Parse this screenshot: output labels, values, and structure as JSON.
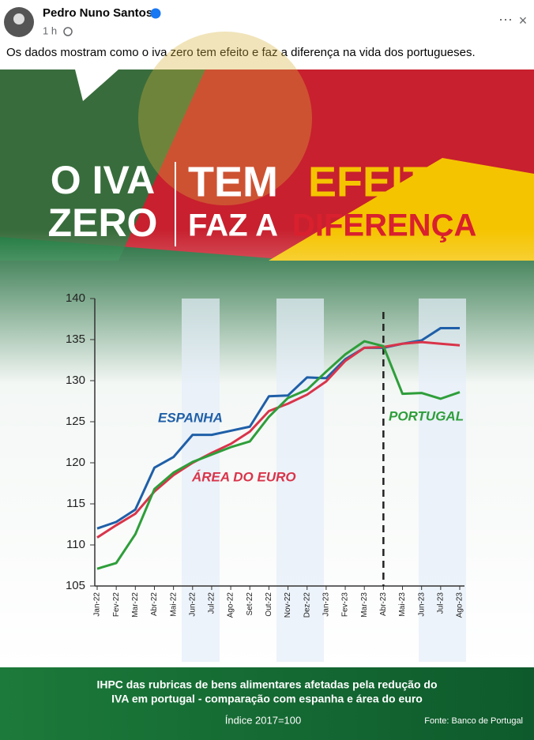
{
  "post": {
    "author": "Pedro Nuno Santos",
    "time": "1 h",
    "text": "Os dados mostram como o iva zero tem efeito e faz a diferença na vida dos portugueses."
  },
  "banner": {
    "o_iva": "O IVA",
    "zero": "ZERO",
    "tem": "TEM",
    "efeito": "EFEITO",
    "faz_a": "FAZ A",
    "diferenca": "DIFERENÇA"
  },
  "chart_data": {
    "type": "line",
    "categories": [
      "Jan-22",
      "Fev-22",
      "Mar-22",
      "Abr-22",
      "Mai-22",
      "Jun-22",
      "Jul-22",
      "Ago-22",
      "Set-22",
      "Out-22",
      "Nov-22",
      "Dez-22",
      "Jan-23",
      "Fev-23",
      "Mar-23",
      "Abr-23",
      "Mai-23",
      "Jun-23",
      "Jul-23",
      "Ago-23"
    ],
    "series": [
      {
        "name": "ESPANHA",
        "color": "#1f5fa8",
        "values": [
          112.0,
          112.8,
          114.3,
          119.4,
          120.7,
          123.4,
          123.4,
          123.9,
          124.4,
          128.1,
          128.2,
          130.4,
          130.3,
          132.6,
          134.0,
          134.0,
          134.5,
          134.9,
          136.4,
          136.4
        ]
      },
      {
        "name": "ÁREA DO EURO",
        "color": "#d9344a",
        "values": [
          110.9,
          112.4,
          113.8,
          116.5,
          118.5,
          120.0,
          121.2,
          122.3,
          123.8,
          126.3,
          127.2,
          128.3,
          129.9,
          132.4,
          134.0,
          134.1,
          134.5,
          134.7,
          134.5,
          134.3
        ]
      },
      {
        "name": "PORTUGAL",
        "color": "#2e9e3a",
        "values": [
          107.1,
          107.8,
          111.3,
          116.8,
          118.8,
          120.1,
          121.0,
          121.9,
          122.6,
          125.6,
          127.9,
          128.9,
          131.1,
          133.2,
          134.8,
          134.2,
          128.4,
          128.5,
          127.8,
          128.6
        ]
      }
    ],
    "ylim": [
      105,
      140
    ],
    "yticks": [
      105,
      110,
      115,
      120,
      125,
      130,
      135,
      140
    ],
    "event_category": "Abr-23",
    "caption": [
      "IHPC das rubricas de bens alimentares afetadas pela redução do",
      "IVA em portugal - comparação com espanha e área do euro"
    ],
    "index_note": "Índice 2017=100",
    "source": "Fonte: Banco de Portugal"
  }
}
